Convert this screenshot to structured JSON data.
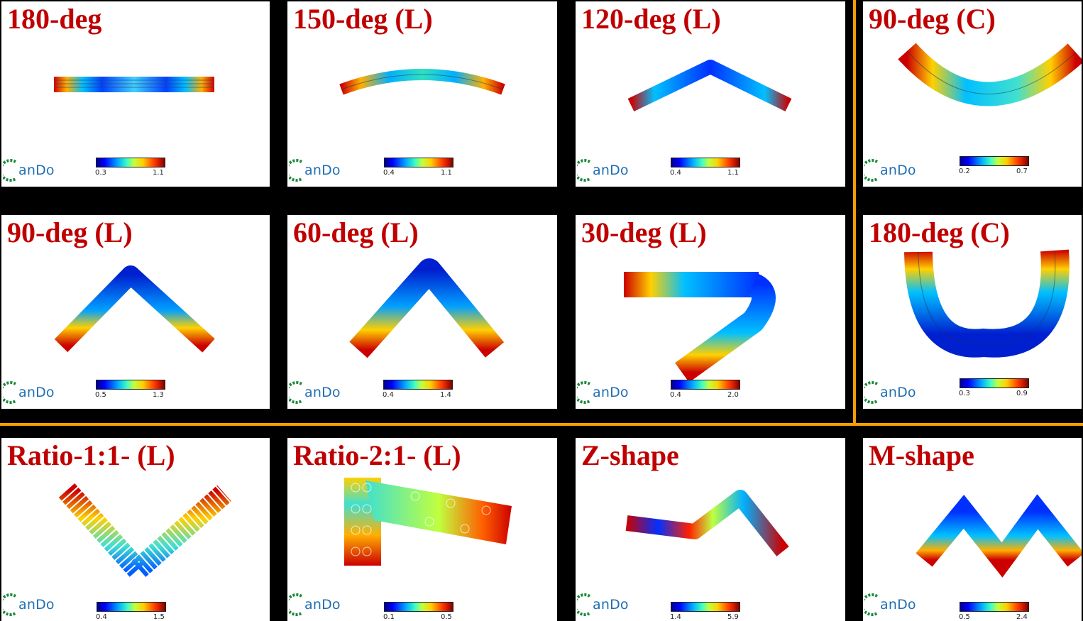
{
  "panels": [
    {
      "title": "180-deg",
      "min": "0.3",
      "max": "1.1",
      "logo": "anDo",
      "shape": "flat"
    },
    {
      "title": "150-deg (L)",
      "min": "0.4",
      "max": "1.1",
      "logo": "anDo",
      "shape": "bend150"
    },
    {
      "title": "120-deg (L)",
      "min": "0.4",
      "max": "1.1",
      "logo": "anDo",
      "shape": "bend120"
    },
    {
      "title": "90-deg (C)",
      "min": "0.2",
      "max": "0.7",
      "logo": "anDo",
      "shape": "curve90"
    },
    {
      "title": "90-deg (L)",
      "min": "0.5",
      "max": "1.3",
      "logo": "anDo",
      "shape": "bend90"
    },
    {
      "title": "60-deg (L)",
      "min": "0.4",
      "max": "1.4",
      "logo": "anDo",
      "shape": "bend60"
    },
    {
      "title": "30-deg (L)",
      "min": "0.4",
      "max": "2.0",
      "logo": "anDo",
      "shape": "bend30"
    },
    {
      "title": "180-deg (C)",
      "min": "0.3",
      "max": "0.9",
      "logo": "anDo",
      "shape": "ushape"
    },
    {
      "title": "Ratio-1:1- (L)",
      "min": "0.4",
      "max": "1.5",
      "logo": "anDo",
      "shape": "ratio11"
    },
    {
      "title": "Ratio-2:1- (L)",
      "min": "0.1",
      "max": "0.5",
      "logo": "anDo",
      "shape": "ratio21"
    },
    {
      "title": "Z-shape",
      "min": "1.4",
      "max": "5.9",
      "logo": "anDo",
      "shape": "zshape"
    },
    {
      "title": "M-shape",
      "min": "0.5",
      "max": "2.4",
      "logo": "anDo",
      "shape": "mshape"
    }
  ],
  "colors": {
    "title": "#c00000",
    "logo_text": "#1f6fb4",
    "divider": "#f0a000",
    "background": "#000000",
    "panel": "#ffffff"
  }
}
